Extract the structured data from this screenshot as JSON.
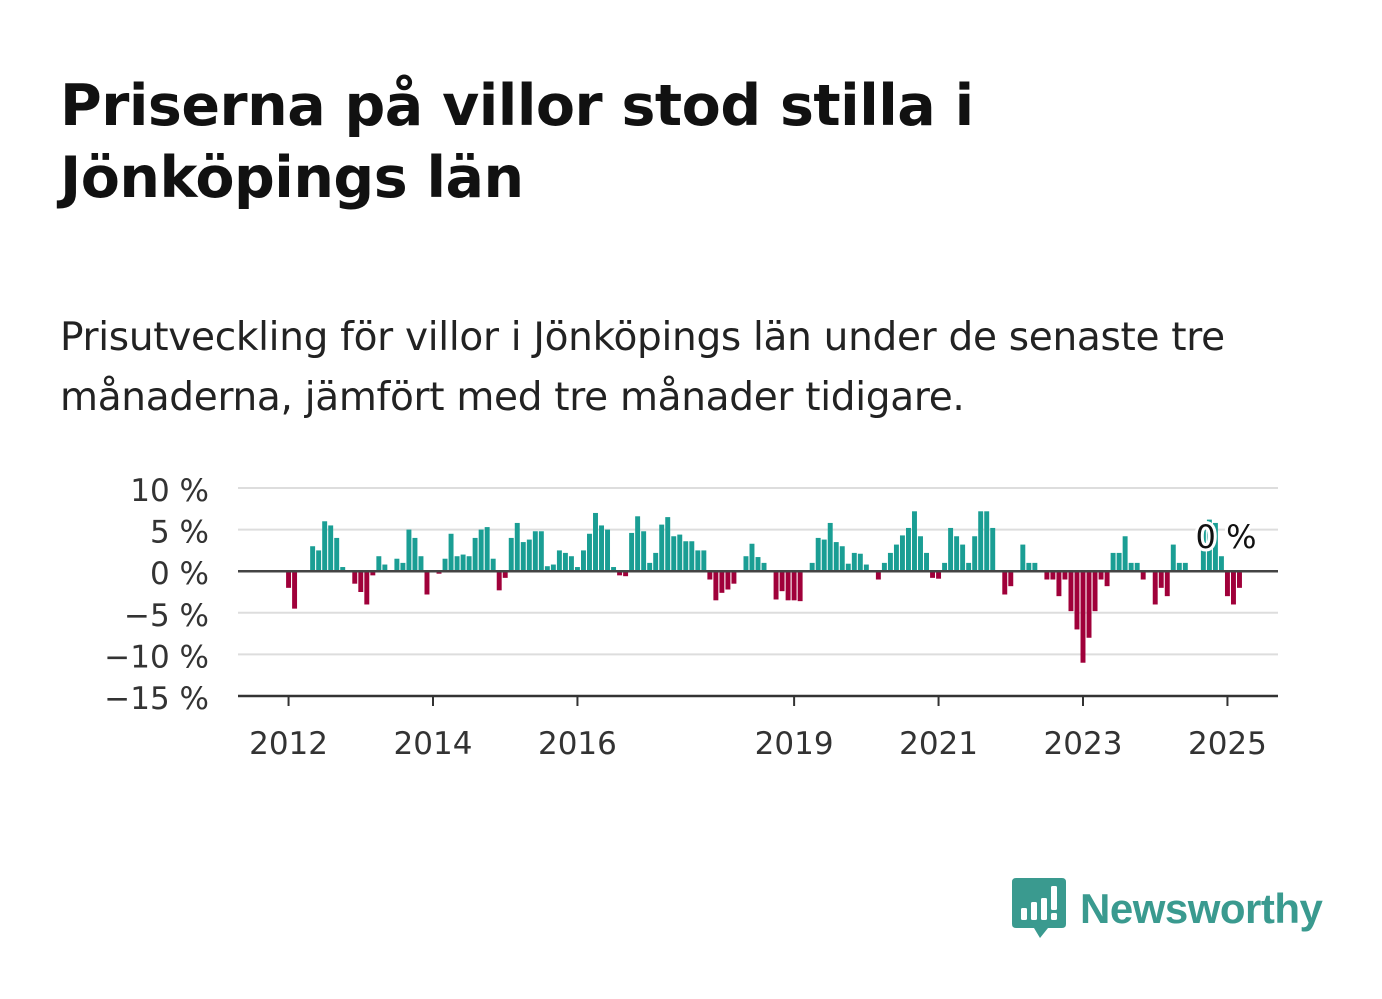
{
  "title": "Priserna på villor stod stilla i Jönköpings län",
  "subtitle": "Prisutveckling för villor i Jönköpings län under de senaste tre månaderna, jämfört med tre månader tidigare.",
  "brand": {
    "name": "Newsworthy",
    "icon": "newsworthy-logo-icon",
    "color": "#3a9a8f"
  },
  "chart_data": {
    "type": "bar",
    "y_ticks": [
      "10 %",
      "5 %",
      "0 %",
      "−5 %",
      "−10 %",
      "−15 %"
    ],
    "y_tick_values": [
      10,
      5,
      0,
      -5,
      -10,
      -15
    ],
    "x_ticks": [
      "2012",
      "2014",
      "2016",
      "2019",
      "2021",
      "2023",
      "2025"
    ],
    "x_tick_values": [
      2012.0,
      2014.0,
      2016.0,
      2019.0,
      2021.0,
      2023.0,
      2025.0
    ],
    "ylim": [
      -15,
      10
    ],
    "xlim": [
      2011.3,
      2025.7
    ],
    "grid": true,
    "positive_color": "#1a9e94",
    "negative_color": "#a0003a",
    "annotation": "0 %",
    "start": 2012,
    "step_months": 1,
    "values": [
      -2,
      -4.5,
      0,
      0,
      3,
      2.5,
      6,
      5.5,
      4,
      0.5,
      0,
      -1.5,
      -2.5,
      -4,
      -0.5,
      1.8,
      0.8,
      0,
      1.5,
      1,
      5,
      4,
      1.8,
      -2.8,
      0,
      -0.3,
      1.5,
      4.5,
      1.8,
      2,
      1.8,
      4,
      5,
      5.3,
      1.5,
      -2.3,
      -0.8,
      4,
      5.8,
      3.5,
      3.8,
      4.8,
      4.8,
      0.6,
      0.8,
      2.5,
      2.2,
      1.8,
      0.5,
      2.5,
      4.5,
      7,
      5.5,
      5,
      0.5,
      -0.5,
      -0.6,
      4.6,
      6.6,
      4.8,
      1,
      2.2,
      5.6,
      6.5,
      4.2,
      4.4,
      3.6,
      3.6,
      2.5,
      2.5,
      -1,
      -3.5,
      -2.6,
      -2.2,
      -1.5,
      0,
      1.8,
      3.3,
      1.7,
      1,
      0,
      -3.4,
      -2.4,
      -3.5,
      -3.5,
      -3.6,
      0,
      1,
      4,
      3.8,
      5.8,
      3.5,
      3,
      0.9,
      2.2,
      2.1,
      0.8,
      0,
      -1,
      1,
      2.2,
      3.2,
      4.3,
      5.2,
      7.2,
      4.2,
      2.2,
      -0.8,
      -0.9,
      1,
      5.2,
      4.2,
      3.2,
      1,
      4.2,
      7.2,
      7.2,
      5.2,
      0,
      -2.8,
      -1.8,
      0,
      3.2,
      1,
      1,
      0,
      -1,
      -1,
      -3,
      -1,
      -4.8,
      -7,
      -11,
      -8,
      -4.8,
      -1,
      -1.8,
      2.2,
      2.2,
      4.2,
      1,
      1,
      -1,
      0,
      -4,
      -2,
      -3,
      3.2,
      1,
      1,
      0,
      0,
      5.2,
      6.2,
      5.8,
      1.8,
      -3,
      -4,
      -2
    ]
  }
}
